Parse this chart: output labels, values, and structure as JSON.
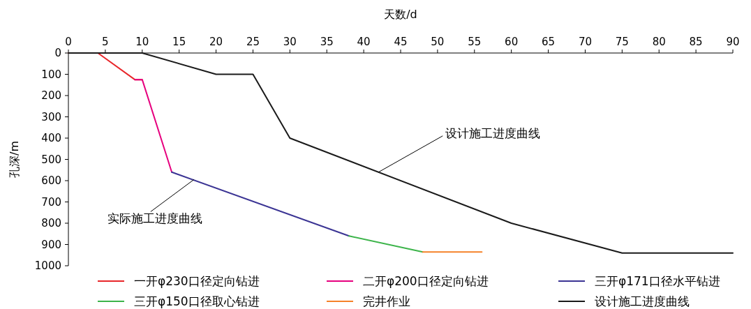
{
  "chart_data": {
    "type": "line",
    "xlabel": "天数/d",
    "ylabel": "孔深/m",
    "xlim": [
      0,
      90
    ],
    "xticks": [
      0,
      5,
      10,
      15,
      20,
      25,
      30,
      35,
      40,
      45,
      50,
      55,
      60,
      65,
      70,
      75,
      80,
      85,
      90
    ],
    "ylim": [
      1000,
      0
    ],
    "yticks": [
      0,
      100,
      200,
      300,
      400,
      500,
      600,
      700,
      800,
      900,
      1000
    ],
    "legend": "bottom",
    "series": [
      {
        "name": "一开φ230口径定向钻进",
        "color": "#e8262a",
        "x": [
          0,
          4,
          9,
          10
        ],
        "values": [
          0,
          0,
          125,
          125
        ]
      },
      {
        "name": "二开φ200口径定向钻进",
        "color": "#e6007e",
        "x": [
          9,
          10,
          14
        ],
        "values": [
          125,
          125,
          560
        ]
      },
      {
        "name": "三开φ171口径水平钻进",
        "color": "#3b3494",
        "x": [
          14,
          38
        ],
        "values": [
          560,
          860
        ]
      },
      {
        "name": "三开φ150口径取心钻进",
        "color": "#3cb44a",
        "x": [
          38,
          48
        ],
        "values": [
          860,
          935
        ]
      },
      {
        "name": "完井作业",
        "color": "#f5822a",
        "x": [
          48,
          56
        ],
        "values": [
          935,
          935
        ]
      },
      {
        "name": "设计施工进度曲线",
        "color": "#1a1a1a",
        "x": [
          0,
          10,
          20,
          25,
          30,
          60,
          75,
          90
        ],
        "values": [
          0,
          0,
          100,
          100,
          400,
          800,
          940,
          940
        ]
      }
    ],
    "annotations": [
      {
        "text": "设计施工进度曲线",
        "x": 42,
        "y": 560
      },
      {
        "text": "实际施工进度曲线",
        "x": 17,
        "y": 595
      }
    ]
  }
}
